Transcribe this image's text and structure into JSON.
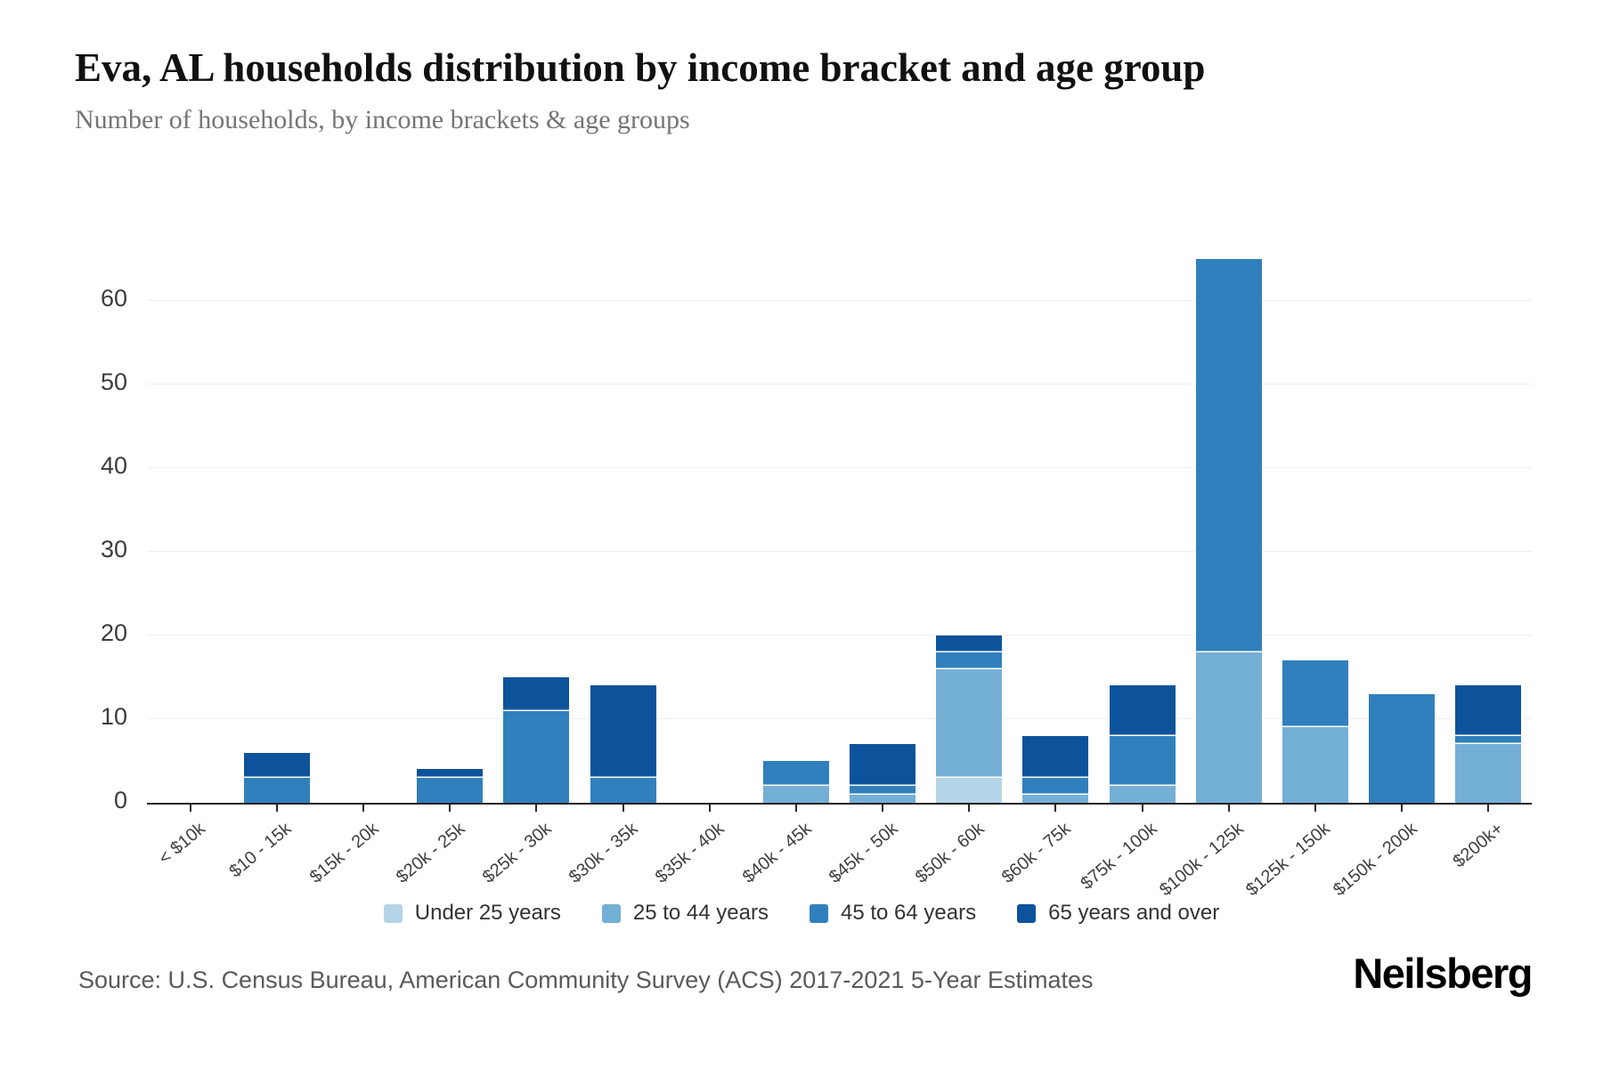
{
  "header": {
    "title": "Eva, AL households distribution by income bracket and age group",
    "subtitle": "Number of households, by income brackets & age groups"
  },
  "chart_data": {
    "type": "bar",
    "stacked": true,
    "title": "Eva, AL households distribution by income bracket and age group",
    "subtitle": "Number of households, by income brackets & age groups",
    "xlabel": "",
    "ylabel": "",
    "ylim": [
      0,
      66
    ],
    "yticks": [
      0,
      10,
      20,
      30,
      40,
      50,
      60
    ],
    "grid": true,
    "legend_position": "bottom",
    "categories": [
      "< $10k",
      "$10 - 15k",
      "$15k - 20k",
      "$20k - 25k",
      "$25k - 30k",
      "$30k - 35k",
      "$35k - 40k",
      "$40k - 45k",
      "$45k - 50k",
      "$50k - 60k",
      "$60k - 75k",
      "$75k - 100k",
      "$100k - 125k",
      "$125k - 150k",
      "$150k - 200k",
      "$200k+"
    ],
    "series": [
      {
        "name": "Under 25 years",
        "color": "#b6d4e8",
        "values": [
          0,
          0,
          0,
          0,
          0,
          0,
          0,
          0,
          0,
          3,
          0,
          0,
          0,
          0,
          0,
          0
        ]
      },
      {
        "name": "25 to 44 years",
        "color": "#74afd6",
        "values": [
          0,
          0,
          0,
          0,
          0,
          0,
          0,
          2,
          1,
          13,
          1,
          2,
          18,
          9,
          0,
          7
        ]
      },
      {
        "name": "45 to 64 years",
        "color": "#3080bd",
        "values": [
          0,
          3,
          0,
          3,
          11,
          3,
          0,
          3,
          1,
          2,
          2,
          6,
          47,
          8,
          13,
          1
        ]
      },
      {
        "name": "65 years and over",
        "color": "#0d539c",
        "values": [
          0,
          3,
          0,
          1,
          4,
          11,
          0,
          0,
          5,
          2,
          5,
          6,
          0,
          0,
          0,
          6
        ]
      }
    ],
    "totals": [
      0,
      6,
      0,
      4,
      15,
      14,
      0,
      5,
      7,
      20,
      8,
      14,
      65,
      17,
      13,
      14
    ]
  },
  "footer": {
    "source": "Source: U.S. Census Bureau, American Community Survey (ACS) 2017-2021 5-Year Estimates",
    "logo": "Neilsberg"
  },
  "colors": {
    "gridline": "#efefef",
    "axis": "#1f1f1f",
    "background": "#ffffff"
  }
}
